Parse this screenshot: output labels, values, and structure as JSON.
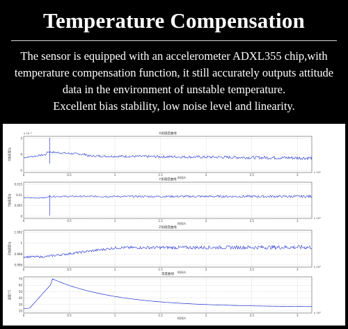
{
  "header": {
    "title": "Temperature Compensation",
    "description_lines": [
      "The sensor is equipped with an accelerometer ADXL355 chip,with",
      "temperature compensation function, it still accurately outputs attitude",
      "data in the environment of unstable temperature.",
      "Excellent bias stability, low noise level and linearity."
    ]
  },
  "colors": {
    "background": "#000000",
    "text": "#ffffff",
    "panel": "#ffffff",
    "signal": "#1f2fd0",
    "grid": "#b4b4b4"
  },
  "plots": [
    {
      "title": "X加速度曲线",
      "ylabel": "X加速度/g",
      "xlabel": "时间/s",
      "xscale": "x 10⁴",
      "yscale": "x 10⁻³",
      "y_ticks": [
        "5",
        "0",
        "-5"
      ],
      "x_ticks": [
        "0",
        "0.5",
        "1",
        "1.5",
        "2",
        "2.5",
        "3"
      ]
    },
    {
      "title": "Y加速度曲线",
      "ylabel": "Y加速度/g",
      "xlabel": "时间/s",
      "xscale": "x 10⁴",
      "yscale": "",
      "y_ticks": [
        "0.015",
        "0.01",
        "0.005",
        "0"
      ],
      "x_ticks": [
        "0",
        "0.5",
        "1",
        "1.5",
        "2",
        "2.5",
        "3"
      ]
    },
    {
      "title": "Z加速度曲线",
      "ylabel": "Z加速度/g",
      "xlabel": "时间/s",
      "xscale": "x 10⁴",
      "yscale": "",
      "y_ticks": [
        "1.002",
        "1",
        "0.998",
        "0.996"
      ],
      "x_ticks": [
        "0",
        "0.5",
        "1",
        "1.5",
        "2",
        "2.5",
        "3"
      ]
    },
    {
      "title": "温度曲线",
      "ylabel": "温度/°C",
      "xlabel": "时间/s",
      "xscale": "x 10⁴",
      "yscale": "",
      "y_ticks": [
        "70",
        "60",
        "50",
        "40",
        "30",
        "20"
      ],
      "x_ticks": [
        "0",
        "0.5",
        "1",
        "1.5",
        "2",
        "2.5",
        "3"
      ]
    }
  ]
}
